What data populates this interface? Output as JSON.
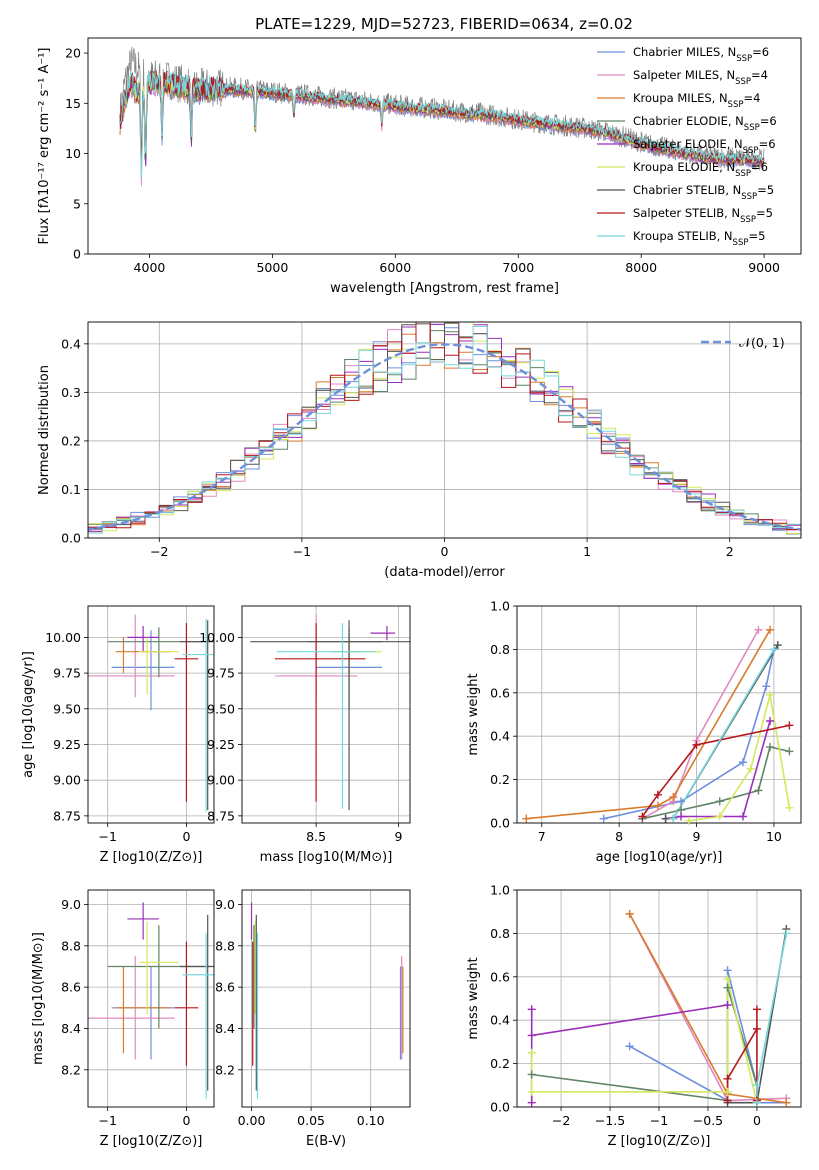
{
  "figure_title": "PLATE=1229, MJD=52723, FIBERID=0634, z=0.02",
  "palette": [
    "#6d8fdc",
    "#e08ac2",
    "#d97b2b",
    "#5f8466",
    "#9b2eb8",
    "#d4e85b",
    "#555555",
    "#b5171d",
    "#77d8dc"
  ],
  "chart_data": [
    {
      "id": "spectrum",
      "type": "line",
      "title": "PLATE=1229, MJD=52723, FIBERID=0634, z=0.02",
      "xlabel": "wavelength [Angstrom, rest frame]",
      "ylabel": "Flux [fλ10⁻¹⁷ erg cm⁻² s⁻¹ A⁻¹]",
      "xlim": [
        3500,
        9300
      ],
      "ylim": [
        0,
        21.5
      ],
      "xticks": [
        4000,
        5000,
        6000,
        7000,
        8000,
        9000
      ],
      "yticks": [
        0,
        5,
        10,
        15,
        20
      ],
      "legend_position": "upper right",
      "observed": {
        "name": "data",
        "color": "#808080",
        "x": [
          3760,
          3800,
          3850,
          3900,
          3950,
          4000,
          4100,
          4200,
          4300,
          4400,
          4500,
          4700,
          4900,
          5100,
          5300,
          5500,
          5700,
          5900,
          6100,
          6300,
          6500,
          6700,
          6900,
          7100,
          7300,
          7500,
          7700,
          7900,
          8100,
          8300,
          8500,
          8700,
          8900,
          9000
        ],
        "y": [
          14,
          17,
          19,
          18.5,
          18,
          17.5,
          17.5,
          17.2,
          16.8,
          16.5,
          16.6,
          16.5,
          16.3,
          16,
          15.8,
          15.5,
          15.3,
          15,
          14.7,
          14.5,
          14.2,
          14,
          13.6,
          13.2,
          12.9,
          12.6,
          12.2,
          11.5,
          10.8,
          10.3,
          9.8,
          9.6,
          9.5,
          9.4
        ]
      },
      "models_x": [
        3760,
        3800,
        3850,
        3900,
        3950,
        4000,
        4100,
        4200,
        4300,
        4400,
        4500,
        4700,
        4900,
        5100,
        5300,
        5500,
        5700,
        5900,
        6100,
        6300,
        6500,
        6700,
        6900,
        7100,
        7300,
        7500,
        7700,
        7900,
        8100,
        8300,
        8500,
        8700,
        8900,
        9000
      ],
      "models_y": [
        13,
        15.5,
        17,
        16,
        16.5,
        17,
        17,
        16.8,
        16.5,
        16.2,
        16.4,
        16.3,
        16.1,
        15.8,
        15.6,
        15.3,
        15.1,
        14.8,
        14.5,
        14.3,
        14,
        13.8,
        13.5,
        13.1,
        12.8,
        12.5,
        12.1,
        11.3,
        10.6,
        10.1,
        9.6,
        9.4,
        9.3,
        9.2
      ],
      "absorption_dips": [
        [
          3934,
          9
        ],
        [
          3968,
          8
        ],
        [
          4102,
          5
        ],
        [
          4340,
          5
        ],
        [
          4861,
          4
        ],
        [
          5175,
          2
        ],
        [
          5890,
          2
        ]
      ],
      "series": [
        {
          "name": "Chabrier MILES, N_SSP=6",
          "color": "#6d8fdc"
        },
        {
          "name": "Salpeter MILES, N_SSP=4",
          "color": "#e08ac2"
        },
        {
          "name": "Kroupa MILES, N_SSP=4",
          "color": "#d97b2b"
        },
        {
          "name": "Chabrier ELODIE, N_SSP=6",
          "color": "#5f8466"
        },
        {
          "name": "Salpeter ELODIE, N_SSP=6",
          "color": "#9b2eb8"
        },
        {
          "name": "Kroupa ELODIE, N_SSP=6",
          "color": "#d4e85b"
        },
        {
          "name": "Chabrier STELIB, N_SSP=5",
          "color": "#555555"
        },
        {
          "name": "Salpeter STELIB, N_SSP=5",
          "color": "#b5171d"
        },
        {
          "name": "Kroupa STELIB, N_SSP=5",
          "color": "#77d8dc"
        }
      ]
    },
    {
      "id": "residuals",
      "type": "step",
      "xlabel": "(data-model)/error",
      "ylabel": "Normed distribution",
      "xlim": [
        -2.5,
        2.5
      ],
      "ylim": [
        0,
        0.445
      ],
      "xticks": [
        -2,
        -1,
        0,
        1,
        2
      ],
      "yticks": [
        0.0,
        0.1,
        0.2,
        0.3,
        0.4
      ],
      "bin_width": 0.1,
      "legend": [
        {
          "name": "𝒩(0, 1)",
          "color": "#6d8fdc",
          "style": "dashed"
        }
      ]
    },
    {
      "id": "age_vs_Z",
      "type": "errorbar",
      "xlabel": "Z [log10(Z/Z⊙)]",
      "ylabel": "age  [log10(age/yr)]",
      "xlim": [
        -1.25,
        0.35
      ],
      "ylim": [
        8.7,
        10.22
      ],
      "xticks": [
        -1,
        0
      ],
      "yticks": [
        8.75,
        9.0,
        9.25,
        9.5,
        9.75,
        10.0
      ],
      "points": [
        {
          "color": "#6d8fdc",
          "x": -0.45,
          "xerr": [
            0.5,
            0.3
          ],
          "y": 9.79,
          "yerr": [
            0.3,
            0.26
          ]
        },
        {
          "color": "#e08ac2",
          "x": -0.65,
          "xerr": [
            0.6,
            0.5
          ],
          "y": 9.73,
          "yerr": [
            0.15,
            0.43
          ]
        },
        {
          "color": "#d97b2b",
          "x": -0.8,
          "xerr": [
            0.1,
            0.6
          ],
          "y": 9.9,
          "yerr": [
            0.15,
            0.1
          ]
        },
        {
          "color": "#5f8466",
          "x": -0.35,
          "xerr": [
            0.65,
            0.65
          ],
          "y": 9.97,
          "yerr": [
            0.25,
            0.1
          ]
        },
        {
          "color": "#9b2eb8",
          "x": -0.55,
          "xerr": [
            0.2,
            0.2
          ],
          "y": 10.0,
          "yerr": [
            0.1,
            0.08
          ]
        },
        {
          "color": "#d4e85b",
          "x": -0.5,
          "xerr": [
            0.1,
            0.4
          ],
          "y": 9.9,
          "yerr": [
            0.3,
            0.1
          ]
        },
        {
          "color": "#555555",
          "x": 0.27,
          "xerr": [
            0.35,
            0.3
          ],
          "y": 9.97,
          "yerr": [
            1.18,
            0.15
          ]
        },
        {
          "color": "#b5171d",
          "x": 0.0,
          "xerr": [
            0.15,
            0.15
          ],
          "y": 9.85,
          "yerr": [
            1.0,
            0.25
          ]
        },
        {
          "color": "#77d8dc",
          "x": 0.25,
          "xerr": [
            0.3,
            0.1
          ],
          "y": 9.88,
          "yerr": [
            1.1,
            0.25
          ]
        }
      ]
    },
    {
      "id": "age_vs_mass",
      "type": "errorbar",
      "xlabel": "mass [log10(M/M⊙)]",
      "xlim": [
        8.05,
        9.07
      ],
      "ylim": [
        8.7,
        10.22
      ],
      "xticks": [
        8.5,
        9.0
      ],
      "yticks": [
        8.75,
        9.0,
        9.25,
        9.5,
        9.75,
        10.0
      ],
      "points": [
        {
          "color": "#6d8fdc",
          "x": 8.7,
          "xerr": [
            0.2,
            0.2
          ],
          "y": 9.79,
          "yerr": [
            0.3,
            0.26
          ]
        },
        {
          "color": "#e08ac2",
          "x": 8.5,
          "xerr": [
            0.25,
            0.25
          ],
          "y": 9.73,
          "yerr": [
            0.15,
            0.43
          ]
        },
        {
          "color": "#d97b2b",
          "x": 8.7,
          "xerr": [
            0.1,
            0.1
          ],
          "y": 9.9,
          "yerr": [
            0.15,
            0.1
          ]
        },
        {
          "color": "#5f8466",
          "x": 8.7,
          "xerr": [
            0.25,
            0.2
          ],
          "y": 9.97,
          "yerr": [
            0.25,
            0.1
          ]
        },
        {
          "color": "#9b2eb8",
          "x": 8.93,
          "xerr": [
            0.1,
            0.05
          ],
          "y": 10.03,
          "yerr": [
            0.05,
            0.05
          ]
        },
        {
          "color": "#d4e85b",
          "x": 8.7,
          "xerr": [
            0.1,
            0.2
          ],
          "y": 9.9,
          "yerr": [
            0.3,
            0.1
          ]
        },
        {
          "color": "#555555",
          "x": 8.7,
          "xerr": [
            0.6,
            0.4
          ],
          "y": 9.97,
          "yerr": [
            1.18,
            0.15
          ]
        },
        {
          "color": "#b5171d",
          "x": 8.5,
          "xerr": [
            0.25,
            0.3
          ],
          "y": 9.85,
          "yerr": [
            1.0,
            0.25
          ]
        },
        {
          "color": "#77d8dc",
          "x": 8.66,
          "xerr": [
            0.4,
            0.2
          ],
          "y": 9.9,
          "yerr": [
            1.1,
            0.2
          ]
        }
      ]
    },
    {
      "id": "massweight_vs_age",
      "type": "line",
      "xlabel": "age  [log10(age/yr)]",
      "ylabel": "mass weight",
      "xlim": [
        6.68,
        10.35
      ],
      "ylim": [
        0,
        1.0
      ],
      "xticks": [
        7,
        8,
        9,
        10
      ],
      "yticks": [
        0.0,
        0.2,
        0.4,
        0.6,
        0.8,
        1.0
      ],
      "series": [
        {
          "color": "#6d8fdc",
          "x": [
            7.8,
            8.8,
            9.6,
            9.9,
            10.0
          ],
          "y": [
            0.02,
            0.1,
            0.28,
            0.63,
            0.8
          ]
        },
        {
          "color": "#e08ac2",
          "x": [
            8.3,
            8.7,
            9.0,
            9.8
          ],
          "y": [
            0.02,
            0.1,
            0.38,
            0.89
          ]
        },
        {
          "color": "#d97b2b",
          "x": [
            6.8,
            8.5,
            8.7,
            9.95
          ],
          "y": [
            0.02,
            0.08,
            0.12,
            0.89
          ]
        },
        {
          "color": "#5f8466",
          "x": [
            8.3,
            8.8,
            9.3,
            9.8,
            9.95,
            10.2
          ],
          "y": [
            0.02,
            0.06,
            0.1,
            0.15,
            0.35,
            0.33
          ]
        },
        {
          "color": "#9b2eb8",
          "x": [
            8.6,
            8.8,
            9.6,
            9.95
          ],
          "y": [
            0.02,
            0.03,
            0.03,
            0.47
          ]
        },
        {
          "color": "#d4e85b",
          "x": [
            8.9,
            9.3,
            9.7,
            9.95,
            10.2
          ],
          "y": [
            0.01,
            0.03,
            0.25,
            0.59,
            0.07
          ]
        },
        {
          "color": "#555555",
          "x": [
            8.6,
            8.7,
            10.05
          ],
          "y": [
            0.02,
            0.02,
            0.82
          ]
        },
        {
          "color": "#b5171d",
          "x": [
            8.3,
            8.5,
            9.0,
            10.2
          ],
          "y": [
            0.03,
            0.13,
            0.36,
            0.45
          ]
        },
        {
          "color": "#77d8dc",
          "x": [
            8.7,
            10.0
          ],
          "y": [
            0.02,
            0.8
          ]
        }
      ]
    },
    {
      "id": "mass_vs_Z",
      "type": "errorbar",
      "xlabel": "Z [log10(Z/Z⊙)]",
      "ylabel": "mass [log10(M/M⊙)]",
      "xlim": [
        -1.25,
        0.35
      ],
      "ylim": [
        8.02,
        9.07
      ],
      "xticks": [
        -1,
        0
      ],
      "yticks": [
        8.2,
        8.4,
        8.6,
        8.8,
        9.0
      ],
      "points": [
        {
          "color": "#6d8fdc",
          "x": -0.45,
          "xerr": [
            0.5,
            0.3
          ],
          "y": 8.5,
          "yerr": [
            0.25,
            0.2
          ]
        },
        {
          "color": "#e08ac2",
          "x": -0.65,
          "xerr": [
            0.6,
            0.5
          ],
          "y": 8.45,
          "yerr": [
            0.2,
            0.3
          ]
        },
        {
          "color": "#d97b2b",
          "x": -0.8,
          "xerr": [
            0.1,
            0.6
          ],
          "y": 8.5,
          "yerr": [
            0.22,
            0.2
          ]
        },
        {
          "color": "#5f8466",
          "x": -0.35,
          "xerr": [
            0.65,
            0.65
          ],
          "y": 8.7,
          "yerr": [
            0.3,
            0.2
          ]
        },
        {
          "color": "#9b2eb8",
          "x": -0.55,
          "xerr": [
            0.2,
            0.2
          ],
          "y": 8.93,
          "yerr": [
            0.1,
            0.08
          ]
        },
        {
          "color": "#d4e85b",
          "x": -0.5,
          "xerr": [
            0.1,
            0.4
          ],
          "y": 8.72,
          "yerr": [
            0.25,
            0.2
          ]
        },
        {
          "color": "#555555",
          "x": 0.27,
          "xerr": [
            0.35,
            0.3
          ],
          "y": 8.7,
          "yerr": [
            0.6,
            0.25
          ]
        },
        {
          "color": "#b5171d",
          "x": 0.0,
          "xerr": [
            0.15,
            0.15
          ],
          "y": 8.5,
          "yerr": [
            0.28,
            0.32
          ]
        },
        {
          "color": "#77d8dc",
          "x": 0.25,
          "xerr": [
            0.3,
            0.1
          ],
          "y": 8.66,
          "yerr": [
            0.6,
            0.2
          ]
        }
      ]
    },
    {
      "id": "mass_vs_EBV",
      "type": "errorbar",
      "xlabel": "E(B-V)",
      "xlim": [
        -0.008,
        0.133
      ],
      "ylim": [
        8.02,
        9.07
      ],
      "xticks": [
        0.0,
        0.05,
        0.1
      ],
      "xticklabels": [
        "0.00",
        "0.05",
        "0.10"
      ],
      "yticks": [
        8.2,
        8.4,
        8.6,
        8.8,
        9.0
      ],
      "points": [
        {
          "color": "#6d8fdc",
          "x": 0.125,
          "y": 8.5,
          "yerr": [
            0.25,
            0.2
          ]
        },
        {
          "color": "#e08ac2",
          "x": 0.126,
          "y": 8.45,
          "yerr": [
            0.2,
            0.3
          ]
        },
        {
          "color": "#d97b2b",
          "x": 0.127,
          "y": 8.5,
          "yerr": [
            0.22,
            0.2
          ]
        },
        {
          "color": "#5f8466",
          "x": 0.002,
          "y": 8.7,
          "yerr": [
            0.3,
            0.2
          ]
        },
        {
          "color": "#9b2eb8",
          "x": 0.0,
          "y": 8.93,
          "yerr": [
            0.1,
            0.08
          ]
        },
        {
          "color": "#d4e85b",
          "x": 0.003,
          "y": 8.72,
          "yerr": [
            0.25,
            0.2
          ]
        },
        {
          "color": "#555555",
          "x": 0.004,
          "y": 8.7,
          "yerr": [
            0.6,
            0.25
          ]
        },
        {
          "color": "#b5171d",
          "x": 0.001,
          "y": 8.5,
          "yerr": [
            0.28,
            0.32
          ]
        },
        {
          "color": "#77d8dc",
          "x": 0.005,
          "y": 8.66,
          "yerr": [
            0.6,
            0.2
          ]
        }
      ]
    },
    {
      "id": "massweight_vs_Z",
      "type": "line",
      "xlabel": "Z [log10(Z/Z⊙)]",
      "ylabel": "mass weight",
      "xlim": [
        -2.45,
        0.45
      ],
      "ylim": [
        0,
        1.0
      ],
      "xticks": [
        -2.0,
        -1.5,
        -1.0,
        -0.5,
        0.0
      ],
      "yticks": [
        0.0,
        0.2,
        0.4,
        0.6,
        0.8,
        1.0
      ],
      "series": [
        {
          "color": "#6d8fdc",
          "x": [
            -1.3,
            -0.3,
            -0.3,
            0.0,
            0.0,
            0.3
          ],
          "y": [
            0.28,
            0.03,
            0.63,
            0.1,
            0.02,
            0.02
          ]
        },
        {
          "color": "#e08ac2",
          "x": [
            -1.3,
            -0.3,
            0.3
          ],
          "y": [
            0.89,
            0.03,
            0.04
          ]
        },
        {
          "color": "#d97b2b",
          "x": [
            -1.3,
            -0.3,
            0.3
          ],
          "y": [
            0.89,
            0.06,
            0.02
          ]
        },
        {
          "color": "#5f8466",
          "x": [
            -2.3,
            -0.3,
            -0.3,
            0.0,
            0.0
          ],
          "y": [
            0.15,
            0.03,
            0.55,
            0.1,
            0.02
          ]
        },
        {
          "color": "#9b2eb8",
          "x": [
            -2.3,
            -2.3,
            -2.3,
            -0.3
          ],
          "y": [
            0.02,
            0.45,
            0.33,
            0.47
          ]
        },
        {
          "color": "#d4e85b",
          "x": [
            -2.3,
            -2.3,
            -0.3,
            -0.3,
            0.0
          ],
          "y": [
            0.25,
            0.07,
            0.07,
            0.59,
            0.02
          ]
        },
        {
          "color": "#555555",
          "x": [
            -0.3,
            0.0,
            0.3
          ],
          "y": [
            0.02,
            0.02,
            0.82
          ]
        },
        {
          "color": "#b5171d",
          "x": [
            -0.3,
            -0.3,
            0.0,
            0.0,
            0.0
          ],
          "y": [
            0.03,
            0.13,
            0.36,
            0.45,
            0.03
          ]
        },
        {
          "color": "#77d8dc",
          "x": [
            0.0,
            0.0,
            0.3
          ],
          "y": [
            0.02,
            0.1,
            0.8
          ]
        }
      ]
    }
  ]
}
